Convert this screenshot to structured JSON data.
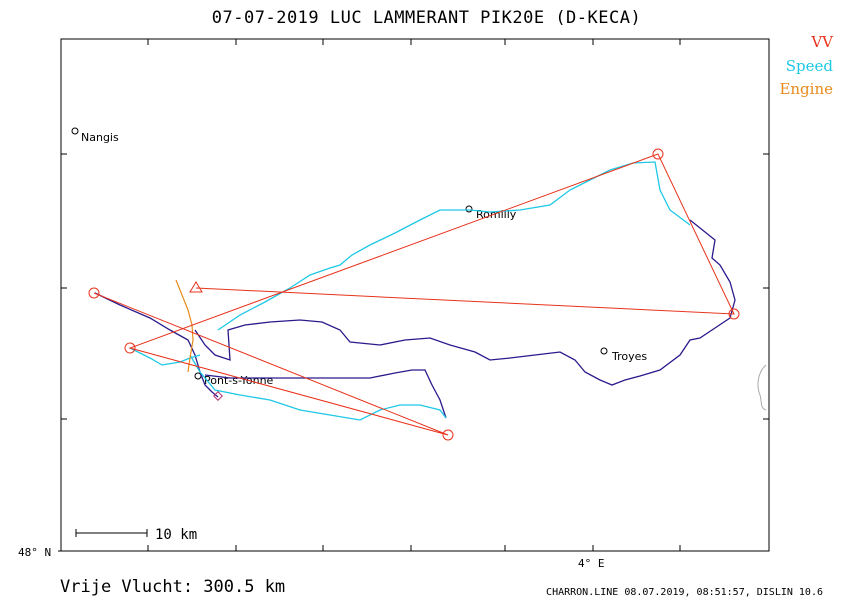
{
  "header": {
    "title": "07-07-2019   LUC LAMMERANT   PIK20E (D-KECA)"
  },
  "legend": {
    "vv": "VV",
    "speed": "Speed",
    "engine": "Engine",
    "colors": {
      "vv": "#e8331c",
      "speed": "#1ec8e6",
      "engine": "#e88a1c",
      "track": "#2a1a8c"
    }
  },
  "map": {
    "towns": [
      {
        "name": "Nangis"
      },
      {
        "name": "Romilly"
      },
      {
        "name": "Troyes"
      },
      {
        "name": "Pont-s-Yonne"
      }
    ],
    "axis": {
      "lat_label": "48° N",
      "lon_label": "4° E"
    },
    "scale_bar": {
      "label": "10 km"
    }
  },
  "footer": {
    "distance": "Vrije Vlucht:  300.5 km",
    "credits": "CHARRON.LINE 08.07.2019, 08:51:57, DISLIN 10.6"
  }
}
